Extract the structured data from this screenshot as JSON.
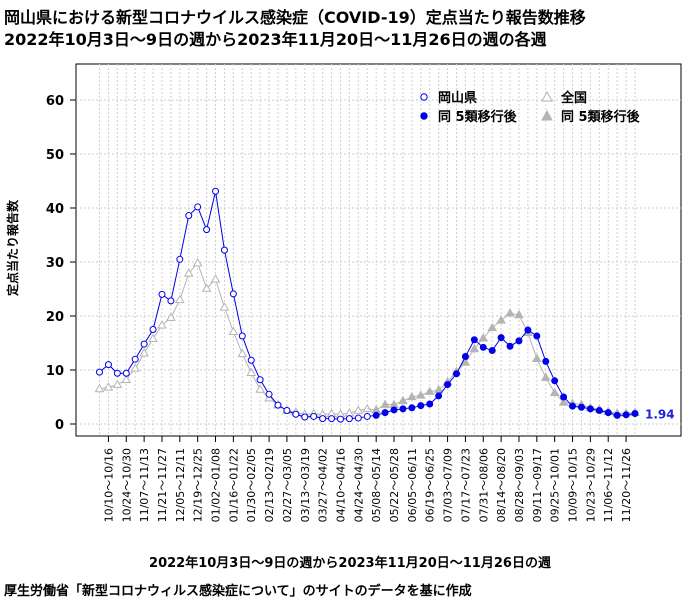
{
  "header": {
    "title_line1": "岡山県における新型コロナウイルス感染症（COVID-19）定点当たり報告数推移",
    "title_line2": "2022年10月3日～9日の週から2023年11月20日～11月26日の週の各週"
  },
  "footer": {
    "xlabel": "2022年10月3日～9日の週から2023年11月20日～11月26日の週",
    "source": "厚生労働省「新型コロナウィルス感染症について」のサイトのデータを基に作成"
  },
  "chart_data": {
    "type": "line",
    "ylabel": "定点当たり報告数",
    "ylim": [
      0,
      65
    ],
    "yticks": [
      0,
      10,
      20,
      30,
      40,
      50,
      60
    ],
    "xticklabels": [
      "10/10～10/16",
      "10/24～10/30",
      "11/07～11/13",
      "11/21～11/27",
      "12/05～12/11",
      "12/19～12/25",
      "01/02～01/08",
      "01/16～01/22",
      "01/30～02/05",
      "02/13～02/19",
      "02/27～03/05",
      "03/13～03/19",
      "03/27～04/02",
      "04/10～04/16",
      "04/24～04/30",
      "05/08～05/14",
      "05/22～05/28",
      "06/05～06/11",
      "06/19～06/25",
      "07/03～07/09",
      "07/17～07/23",
      "07/31～08/06",
      "08/14～08/20",
      "08/28～09/03",
      "09/11～09/17",
      "09/25～10/01",
      "10/09～10/15",
      "10/23～10/29",
      "11/06～11/12",
      "11/20～11/26"
    ],
    "grid": true,
    "legend": {
      "position": "top-right",
      "items": {
        "okayama": "岡山県",
        "national": "全国",
        "okayama_post": "同 5類移行後",
        "national_post": "同 5類移行後"
      }
    },
    "annotation": "1.94",
    "colors": {
      "okayama": "#0000ee",
      "national": "#b4b4b4"
    },
    "series": [
      {
        "name": "岡山県",
        "values": [
          9.6,
          11.0,
          9.4,
          9.4,
          12.0,
          14.8,
          17.5,
          24.0,
          22.8,
          30.5,
          38.6,
          40.2,
          36.0,
          43.1,
          32.2,
          24.1,
          16.3,
          11.8,
          8.2,
          5.5,
          3.5,
          2.5,
          1.8,
          1.3,
          1.4,
          1.0,
          1.0,
          0.9,
          1.0,
          1.1,
          1.4
        ]
      },
      {
        "name": "同 5類移行後",
        "values": [
          1.6,
          2.1,
          2.6,
          2.8,
          3.0,
          3.4,
          3.7,
          5.2,
          7.3,
          9.3,
          12.5,
          15.6,
          14.2,
          13.6,
          16.0,
          14.4,
          15.4,
          17.4,
          16.3,
          11.6,
          8.0,
          5.0,
          3.3,
          3.1,
          2.8,
          2.5,
          2.1,
          1.6,
          1.7,
          1.94
        ]
      },
      {
        "name": "全国",
        "values": [
          6.5,
          6.8,
          7.3,
          8.2,
          10.3,
          13.1,
          15.8,
          18.3,
          19.7,
          23.0,
          27.9,
          29.8,
          25.1,
          26.8,
          21.6,
          17.1,
          13.0,
          9.5,
          6.4,
          4.8,
          3.5,
          2.5,
          2.2,
          1.8,
          1.9,
          1.8,
          1.9,
          1.8,
          2.0,
          2.5,
          2.8
        ]
      },
      {
        "name": "同 5類移行後",
        "values": [
          2.6,
          3.6,
          3.6,
          4.3,
          5.0,
          5.3,
          6.0,
          6.3,
          7.8,
          9.7,
          11.4,
          13.9,
          15.9,
          17.8,
          19.2,
          20.5,
          20.2,
          16.9,
          12.1,
          8.6,
          5.8,
          4.0,
          3.8,
          3.6,
          3.0,
          2.7,
          2.3,
          2.0,
          2.0,
          2.1
        ]
      }
    ]
  }
}
